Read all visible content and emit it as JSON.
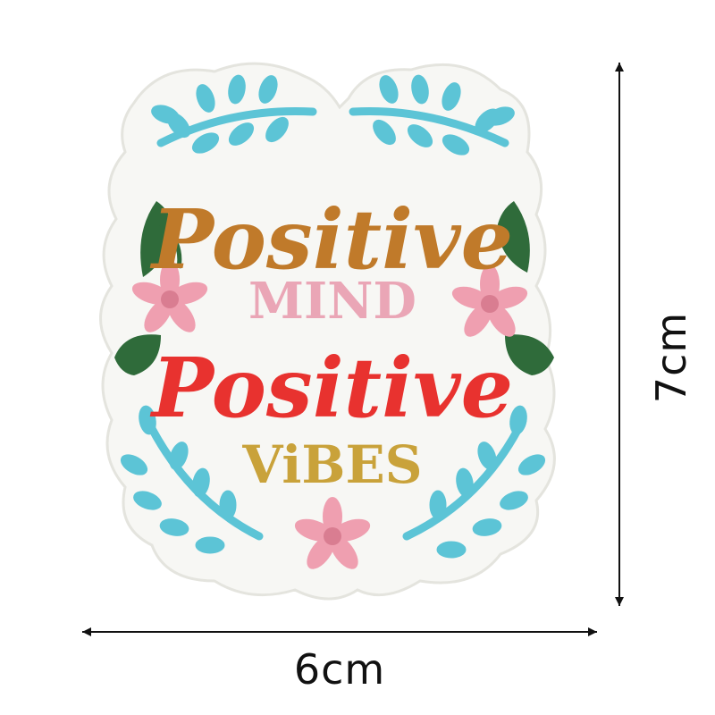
{
  "patch": {
    "line1": "Positive",
    "line2": "MIND",
    "line3": "Positive",
    "line4": "ViBES"
  },
  "dimensions": {
    "width_label": "6cm",
    "height_label": "7cm"
  },
  "colors": {
    "background": "#ffffff",
    "fabric": "#f7f7f4",
    "positive_top": "#c07a2a",
    "mind": "#eaa6b6",
    "positive_bottom": "#e8322f",
    "vibes": "#c9a23a",
    "leaf_blue": "#5cc4d6",
    "leaf_green": "#2f6b3a",
    "flower_pink": "#ef9fb0"
  },
  "icons": {
    "branches": "leaf-branch-icon",
    "leaves": "green-leaf-icon",
    "flowers": "pink-flower-icon"
  }
}
